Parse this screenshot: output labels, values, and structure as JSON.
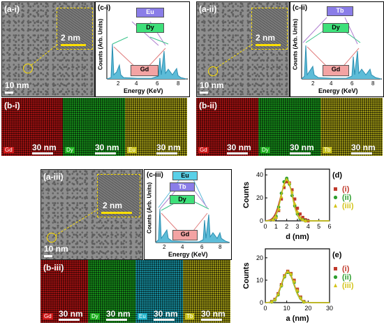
{
  "figure": {
    "panels": {
      "a_i": {
        "label": "(a-i)",
        "scale_main": "10 nm",
        "scale_inset": "2 nm"
      },
      "a_ii": {
        "label": "(a-ii)",
        "scale_main": "10 nm",
        "scale_inset": "2 nm"
      },
      "a_iii": {
        "label": "(a-iii)",
        "scale_main": "10 nm",
        "scale_inset": "2 nm"
      },
      "c_i": {
        "label": "(c-i)",
        "xlabel": "Energy (KeV)",
        "ylabel": "Counts (Arb. Units)",
        "ticks": [
          "2",
          "4",
          "6",
          "8"
        ],
        "tags": [
          "Eu",
          "Dy",
          "Gd"
        ]
      },
      "c_ii": {
        "label": "(c-ii)",
        "xlabel": "Energy (KeV)",
        "ylabel": "Counts (Arb. Units)",
        "ticks": [
          "2",
          "4",
          "6",
          "8"
        ],
        "tags": [
          "Tb",
          "Dy",
          "Gd"
        ]
      },
      "c_iii": {
        "label": "(c-iii)",
        "xlabel": "Energy (KeV)",
        "ylabel": "Counts (Arb. Units)",
        "ticks": [
          "2",
          "4",
          "6",
          "8"
        ],
        "tags": [
          "Eu",
          "Tb",
          "Dy",
          "Gd"
        ]
      },
      "b_i": {
        "label": "(b-i)",
        "maps": [
          {
            "el": "Gd",
            "scale": "30 nm",
            "color": "#d01818"
          },
          {
            "el": "Dy",
            "scale": "30 nm",
            "color": "#1fb21f"
          },
          {
            "el": "Eu",
            "scale": "30 nm",
            "color": "#c9c21c"
          }
        ]
      },
      "b_ii": {
        "label": "(b-ii)",
        "maps": [
          {
            "el": "Gd",
            "scale": "30 nm",
            "color": "#d01818"
          },
          {
            "el": "Dy",
            "scale": "30 nm",
            "color": "#1fb21f"
          },
          {
            "el": "Tb",
            "scale": "30 nm",
            "color": "#c9c21c"
          }
        ]
      },
      "b_iii": {
        "label": "(b-iii)",
        "maps": [
          {
            "el": "Gd",
            "scale": "30 nm",
            "color": "#d01818"
          },
          {
            "el": "Dy",
            "scale": "30 nm",
            "color": "#1fb21f"
          },
          {
            "el": "Eu",
            "scale": "30 nm",
            "color": "#1eb2c9"
          },
          {
            "el": "Tb",
            "scale": "30 nm",
            "color": "#c9c21c"
          }
        ]
      }
    }
  },
  "chart_data": [
    {
      "type": "scatter",
      "panel": "(d)",
      "xlabel": "d (nm)",
      "ylabel": "Counts",
      "xlim": [
        0,
        6
      ],
      "ylim": [
        0,
        45
      ],
      "xticks": [
        "0",
        "1",
        "2",
        "3",
        "4",
        "5",
        "6"
      ],
      "yticks": [
        "0",
        "20",
        "40"
      ],
      "series": [
        {
          "name": "(i)",
          "color": "#c0392b",
          "marker": "square",
          "x": [
            0.75,
            1.0,
            1.25,
            1.5,
            1.75,
            2.0,
            2.25,
            2.5,
            2.75,
            3.0,
            3.25,
            3.5,
            3.75,
            4.0
          ],
          "y": [
            1,
            3,
            9,
            19,
            29,
            34,
            33,
            27,
            19,
            11,
            6,
            3,
            1,
            0
          ]
        },
        {
          "name": "(ii)",
          "color": "#2e9e2e",
          "marker": "circle",
          "x": [
            0.75,
            1.0,
            1.25,
            1.5,
            1.75,
            2.0,
            2.25,
            2.5,
            2.75,
            3.0,
            3.25,
            3.5,
            3.75
          ],
          "y": [
            1,
            4,
            12,
            24,
            34,
            37,
            32,
            22,
            13,
            6,
            2,
            1,
            0
          ]
        },
        {
          "name": "(iii)",
          "color": "#d4c41a",
          "marker": "triangle",
          "x": [
            0.75,
            1.0,
            1.25,
            1.5,
            1.75,
            2.0,
            2.25,
            2.5,
            2.75,
            3.0,
            3.25,
            3.5,
            3.75
          ],
          "y": [
            1,
            3,
            10,
            21,
            31,
            36,
            33,
            25,
            15,
            8,
            3,
            1,
            0
          ]
        }
      ]
    },
    {
      "type": "scatter",
      "panel": "(e)",
      "xlabel": "a (nm)",
      "ylabel": "Counts",
      "xlim": [
        0,
        30
      ],
      "ylim": [
        0,
        24
      ],
      "xticks": [
        "0",
        "10",
        "20",
        "30"
      ],
      "yticks": [
        "0",
        "10",
        "20"
      ],
      "series": [
        {
          "name": "(i)",
          "color": "#c0392b",
          "marker": "square",
          "x": [
            3,
            4.5,
            6,
            7.5,
            9,
            10.5,
            12,
            13.5,
            15,
            16.5,
            18
          ],
          "y": [
            0.5,
            1.5,
            4,
            8,
            12,
            14,
            13,
            10,
            6,
            2.5,
            0.5
          ]
        },
        {
          "name": "(ii)",
          "color": "#2e9e2e",
          "marker": "circle",
          "x": [
            3,
            4.5,
            6,
            7.5,
            9,
            10.5,
            12,
            13.5,
            15,
            16.5,
            18
          ],
          "y": [
            0.3,
            1.2,
            3.5,
            7.5,
            11.5,
            13.5,
            12.5,
            9,
            5,
            2,
            0.3
          ]
        },
        {
          "name": "(iii)",
          "color": "#d4c41a",
          "marker": "triangle",
          "x": [
            3,
            4.5,
            6,
            7.5,
            9,
            10.5,
            12,
            13.5,
            15,
            16.5,
            18
          ],
          "y": [
            0.4,
            1.4,
            3.8,
            7.8,
            11.8,
            13.8,
            12.8,
            9.5,
            5.5,
            2.2,
            0.4
          ]
        }
      ]
    }
  ]
}
